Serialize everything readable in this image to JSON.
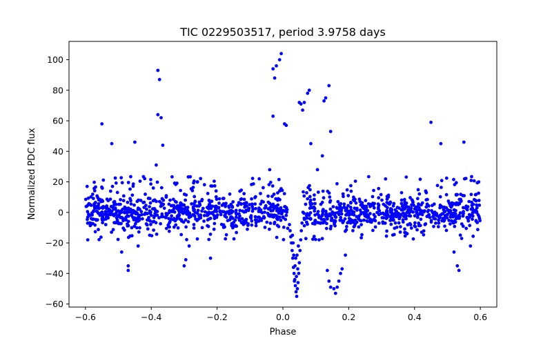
{
  "chart_data": {
    "type": "scatter",
    "title": "TIC 0229503517, period 3.9758 days",
    "xlabel": "Phase",
    "ylabel": "Normalized PDC flux",
    "xlim": [
      -0.65,
      0.65
    ],
    "ylim": [
      -62,
      112
    ],
    "xticks": [
      -0.6,
      -0.4,
      -0.2,
      0.0,
      0.2,
      0.4,
      0.6
    ],
    "xtick_labels": [
      "−0.6",
      "−0.4",
      "−0.2",
      "0.0",
      "0.2",
      "0.4",
      "0.6"
    ],
    "yticks": [
      -60,
      -40,
      -20,
      0,
      20,
      40,
      60,
      80,
      100
    ],
    "ytick_labels": [
      "−60",
      "−40",
      "−20",
      "0",
      "20",
      "40",
      "60",
      "80",
      "100"
    ],
    "grid": false,
    "marker_color": "#0000ff",
    "series": [
      {
        "name": "flux",
        "outliers": [
          [
            -0.55,
            58
          ],
          [
            -0.52,
            45
          ],
          [
            -0.45,
            46
          ],
          [
            -0.38,
            93
          ],
          [
            -0.375,
            87
          ],
          [
            -0.38,
            64
          ],
          [
            -0.37,
            62
          ],
          [
            -0.365,
            44
          ],
          [
            -0.385,
            31
          ],
          [
            -0.03,
            94
          ],
          [
            -0.025,
            88
          ],
          [
            -0.02,
            96
          ],
          [
            -0.01,
            100
          ],
          [
            -0.005,
            104
          ],
          [
            -0.03,
            63
          ],
          [
            0.005,
            58
          ],
          [
            0.01,
            57
          ],
          [
            0.05,
            72
          ],
          [
            0.055,
            71
          ],
          [
            0.06,
            67
          ],
          [
            0.065,
            72
          ],
          [
            0.075,
            78
          ],
          [
            0.08,
            80
          ],
          [
            0.085,
            45
          ],
          [
            0.125,
            73
          ],
          [
            0.13,
            75
          ],
          [
            0.14,
            83
          ],
          [
            0.145,
            53
          ],
          [
            0.12,
            37
          ],
          [
            0.105,
            28
          ],
          [
            -0.04,
            28
          ],
          [
            0.45,
            59
          ],
          [
            0.48,
            45
          ],
          [
            0.55,
            46
          ],
          [
            -0.49,
            -26
          ],
          [
            -0.47,
            -35
          ],
          [
            -0.47,
            -38
          ],
          [
            -0.44,
            -22
          ],
          [
            -0.295,
            -31
          ],
          [
            -0.3,
            -35
          ],
          [
            -0.285,
            -22
          ],
          [
            -0.22,
            -30
          ],
          [
            0.135,
            -38
          ],
          [
            0.14,
            -45
          ],
          [
            0.145,
            -49
          ],
          [
            0.155,
            -50
          ],
          [
            0.16,
            -53
          ],
          [
            0.165,
            -49
          ],
          [
            0.17,
            -45
          ],
          [
            0.175,
            -40
          ],
          [
            0.18,
            -37
          ],
          [
            0.19,
            -28
          ],
          [
            0.53,
            -35
          ],
          [
            0.535,
            -38
          ],
          [
            0.52,
            -26
          ],
          [
            0.57,
            -22
          ],
          [
            0.11,
            -18
          ]
        ],
        "dip": [
          [
            0.02,
            -8
          ],
          [
            0.022,
            -12
          ],
          [
            0.024,
            -16
          ],
          [
            0.026,
            -20
          ],
          [
            0.028,
            -25
          ],
          [
            0.03,
            -30
          ],
          [
            0.032,
            -36
          ],
          [
            0.034,
            -40
          ],
          [
            0.036,
            -44
          ],
          [
            0.038,
            -48
          ],
          [
            0.04,
            -52
          ],
          [
            0.042,
            -55
          ],
          [
            0.044,
            -50
          ],
          [
            0.046,
            -46
          ],
          [
            0.048,
            -40
          ],
          [
            0.05,
            -33
          ],
          [
            0.052,
            -25
          ],
          [
            0.054,
            -18
          ],
          [
            0.056,
            -12
          ],
          [
            0.058,
            -7
          ],
          [
            0.033,
            -28
          ],
          [
            0.037,
            -35
          ],
          [
            0.041,
            -42
          ],
          [
            0.045,
            -37
          ],
          [
            0.039,
            -30
          ],
          [
            0.035,
            -45
          ],
          [
            0.043,
            -28
          ],
          [
            0.031,
            -20
          ],
          [
            0.047,
            -22
          ],
          [
            0.029,
            -15
          ]
        ]
      }
    ]
  }
}
